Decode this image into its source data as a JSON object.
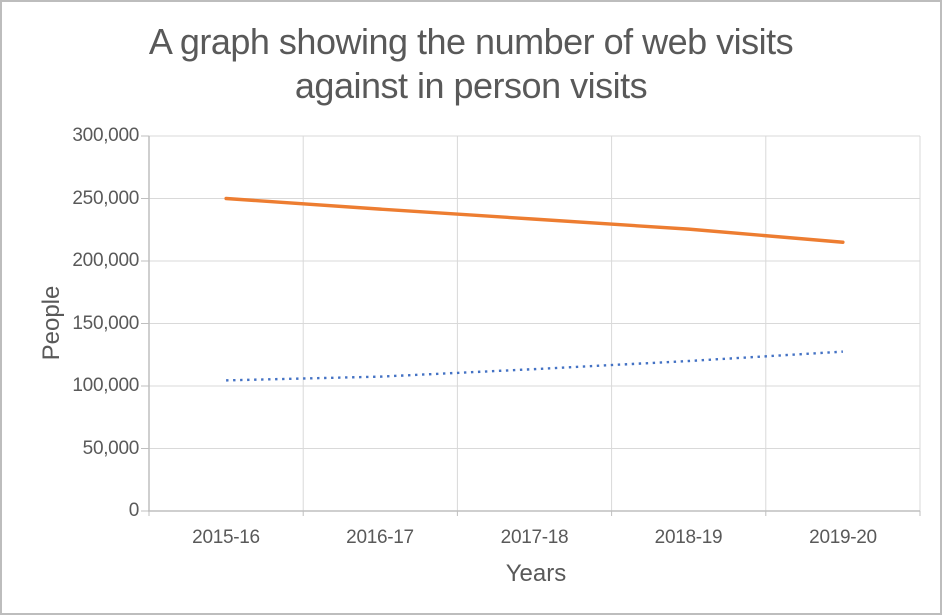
{
  "title": {
    "line1": "A graph showing the number of web visits",
    "line2": "against in person visits",
    "full": "A graph showing the number of web visits against in person visits"
  },
  "y_axis": {
    "label": "People",
    "tick_labels": [
      "300,000",
      "250,000",
      "200,000",
      "150,000",
      "100,000",
      "50,000",
      "0"
    ]
  },
  "x_axis": {
    "label": "Years",
    "tick_labels": [
      "2015-16",
      "2016-17",
      "2017-18",
      "2018-19",
      "2019-20"
    ]
  },
  "colors": {
    "series_orange": "#ED7D31",
    "series_blue": "#4472C4",
    "gridline": "#D9D9D9",
    "axis_line": "#BFBFBF",
    "text": "#595959"
  },
  "chart_data": {
    "type": "line",
    "title": "A graph showing the number of web visits against in person visits",
    "xlabel": "Years",
    "ylabel": "People",
    "categories": [
      "2015-16",
      "2016-17",
      "2017-18",
      "2018-19",
      "2019-20"
    ],
    "series": [
      {
        "id": "orange-solid-line",
        "color": "#ED7D31",
        "line_style": "solid",
        "values": [
          250000,
          241500,
          233500,
          225500,
          215000
        ]
      },
      {
        "id": "blue-dotted-line",
        "color": "#4472C4",
        "line_style": "dotted",
        "values": [
          104500,
          107500,
          113500,
          120000,
          127500
        ]
      }
    ],
    "ylim": [
      0,
      300000
    ],
    "ytick_interval": 50000,
    "grid": true,
    "legend": "none"
  }
}
